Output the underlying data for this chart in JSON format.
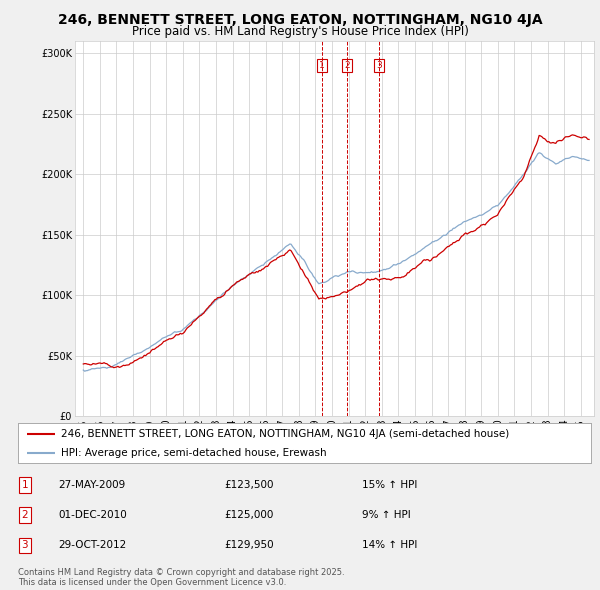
{
  "title": "246, BENNETT STREET, LONG EATON, NOTTINGHAM, NG10 4JA",
  "subtitle": "Price paid vs. HM Land Registry's House Price Index (HPI)",
  "ylabel_ticks": [
    "£0",
    "£50K",
    "£100K",
    "£150K",
    "£200K",
    "£250K",
    "£300K"
  ],
  "ytick_values": [
    0,
    50000,
    100000,
    150000,
    200000,
    250000,
    300000
  ],
  "ylim": [
    0,
    310000
  ],
  "transactions": [
    {
      "label": "1",
      "date": "27-MAY-2009",
      "price": "£123,500",
      "hpi_diff": "15% ↑ HPI",
      "x_year": 2009.41
    },
    {
      "label": "2",
      "date": "01-DEC-2010",
      "price": "£125,000",
      "hpi_diff": "9% ↑ HPI",
      "x_year": 2010.92
    },
    {
      "label": "3",
      "date": "29-OCT-2012",
      "price": "£129,950",
      "hpi_diff": "14% ↑ HPI",
      "x_year": 2012.83
    }
  ],
  "legend_red": "246, BENNETT STREET, LONG EATON, NOTTINGHAM, NG10 4JA (semi-detached house)",
  "legend_blue": "HPI: Average price, semi-detached house, Erewash",
  "footer": "Contains HM Land Registry data © Crown copyright and database right 2025.\nThis data is licensed under the Open Government Licence v3.0.",
  "red_color": "#cc0000",
  "blue_color": "#88aacc",
  "background_color": "#f0f0f0",
  "plot_bg_color": "#ffffff",
  "grid_color": "#cccccc",
  "vline_color": "#cc0000",
  "box_color": "#cc0000",
  "title_fontsize": 10,
  "subtitle_fontsize": 8.5,
  "tick_fontsize": 7,
  "legend_fontsize": 7.5,
  "footer_fontsize": 6,
  "xlim_start": 1994.5,
  "xlim_end": 2025.8
}
